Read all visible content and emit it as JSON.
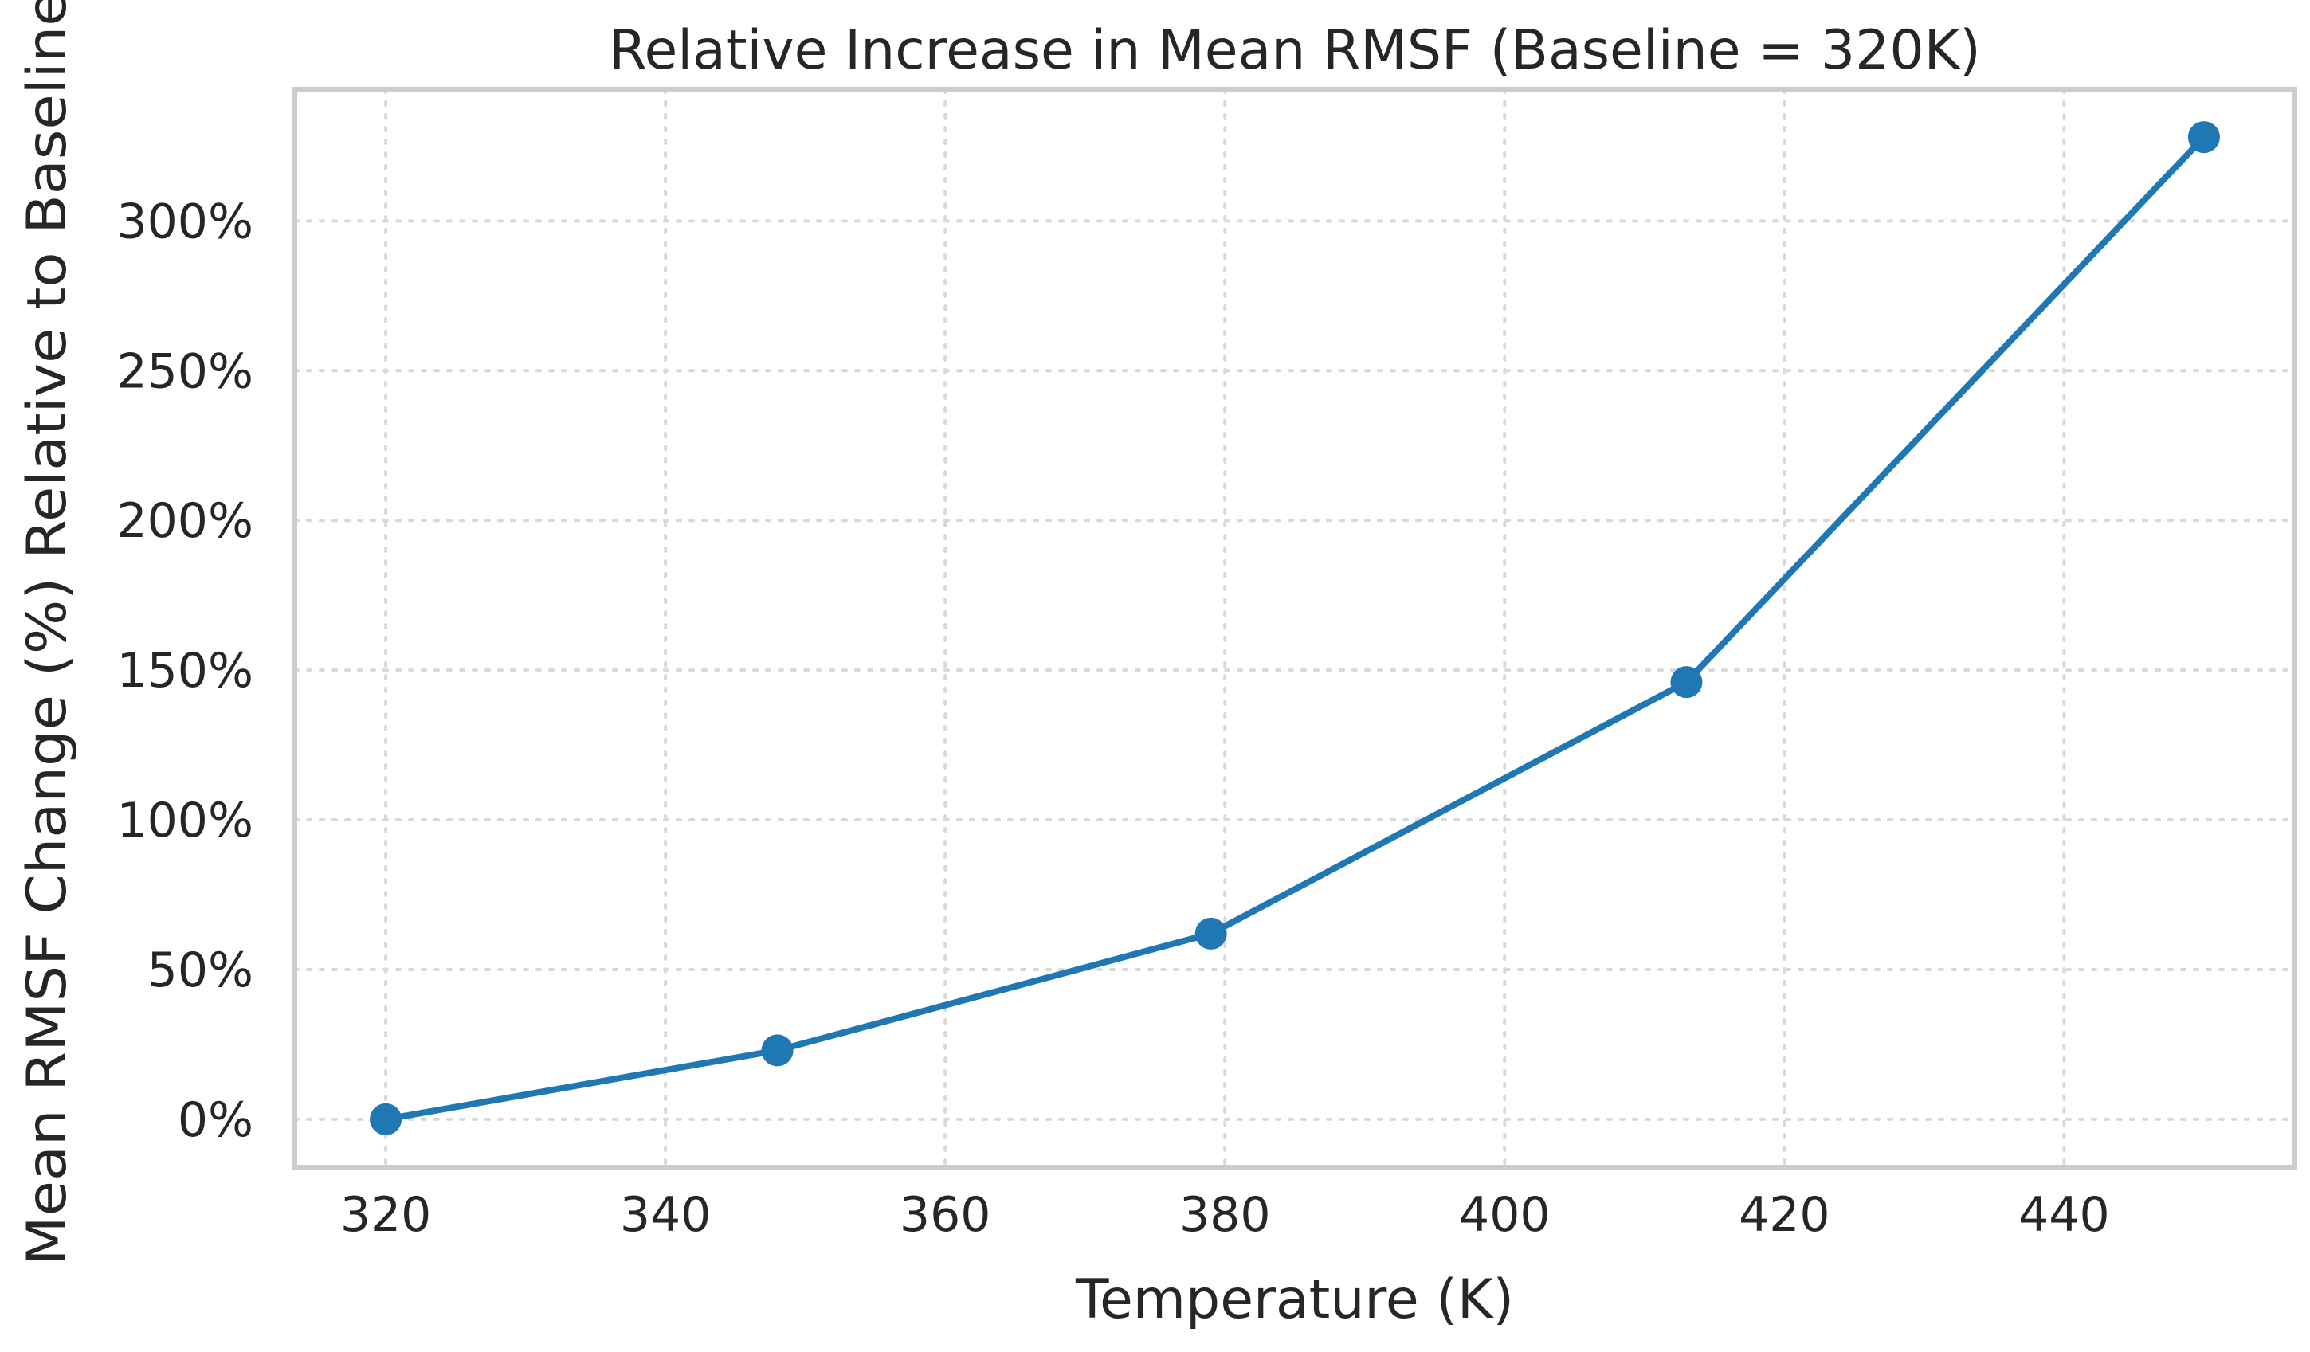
{
  "chart_data": {
    "type": "line",
    "title": "Relative Increase in Mean RMSF (Baseline = 320K)",
    "xlabel": "Temperature (K)",
    "ylabel": "Mean RMSF Change (%) Relative to Baseline",
    "x": [
      320,
      348,
      379,
      413,
      450
    ],
    "series": [
      {
        "values": [
          0,
          23,
          62,
          146,
          328
        ],
        "color": "#1f77b4"
      }
    ],
    "xlim": [
      313.5,
      456.5
    ],
    "ylim": [
      -16,
      344
    ],
    "xticks": [
      320,
      340,
      360,
      380,
      400,
      420,
      440
    ],
    "xtick_labels": [
      "320",
      "340",
      "360",
      "380",
      "400",
      "420",
      "440"
    ],
    "yticks": [
      0,
      50,
      100,
      150,
      200,
      250,
      300
    ],
    "ytick_labels": [
      "0%",
      "50%",
      "100%",
      "150%",
      "200%",
      "250%",
      "300%"
    ],
    "grid": true,
    "grid_style": "dotted"
  }
}
